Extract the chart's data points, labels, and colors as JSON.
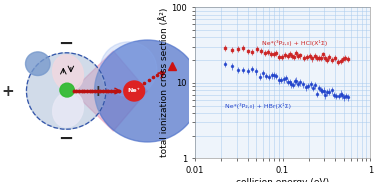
{
  "xlabel": "collision energy (eV)",
  "ylabel": "total ionization cross section (Å²)",
  "background_color": "#ffffff",
  "grid_color": "#aaccee",
  "hcl_color": "#cc2222",
  "hbr_color": "#2244cc",
  "tick_label_size": 6,
  "axis_label_size": 6.5,
  "hcl_label": "Ne*(³P₂,₀) + HCl(X¹Σ)",
  "hbr_label": "Ne*(³P₂,₀) + HBr(X¹Σ)"
}
